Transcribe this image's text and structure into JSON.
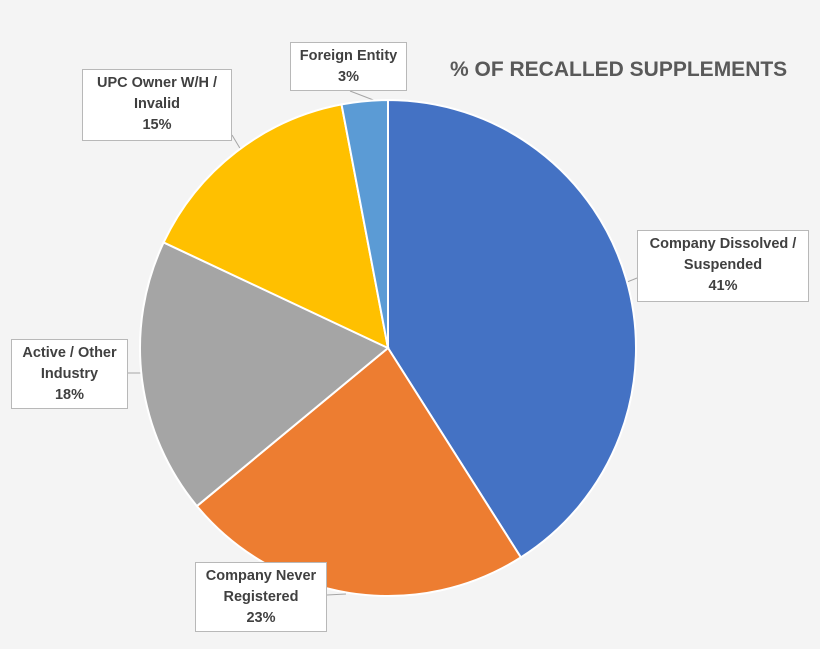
{
  "chart_data": {
    "type": "pie",
    "title": "% OF RECALLED SUPPLEMENTS",
    "slices": [
      {
        "label": "Company Dissolved / Suspended",
        "value": 41,
        "value_label": "41%",
        "color": "#4472c4"
      },
      {
        "label": "Company Never Registered",
        "value": 23,
        "value_label": "23%",
        "color": "#ed7d31"
      },
      {
        "label": "Active / Other Industry",
        "value": 18,
        "value_label": "18%",
        "color": "#a5a5a5"
      },
      {
        "label": "UPC Owner W/H / Invalid",
        "value": 15,
        "value_label": "15%",
        "color": "#ffc000"
      },
      {
        "label": "Foreign Entity",
        "value": 3,
        "value_label": "3%",
        "color": "#5b9bd5"
      }
    ],
    "start_angle": "top (12 o'clock)",
    "direction": "clockwise",
    "data_labels": "callouts with category name and percentage",
    "legend": "none"
  },
  "callouts": [
    {
      "lines": [
        "Company Dissolved /",
        "Suspended"
      ],
      "value": "41%"
    },
    {
      "lines": [
        "Company Never",
        "Registered"
      ],
      "value": "23%"
    },
    {
      "lines": [
        "Active / Other",
        "Industry"
      ],
      "value": "18%"
    },
    {
      "lines": [
        "UPC Owner W/H /",
        "Invalid"
      ],
      "value": "15%"
    },
    {
      "lines": [
        "Foreign Entity"
      ],
      "value": "3%"
    }
  ]
}
